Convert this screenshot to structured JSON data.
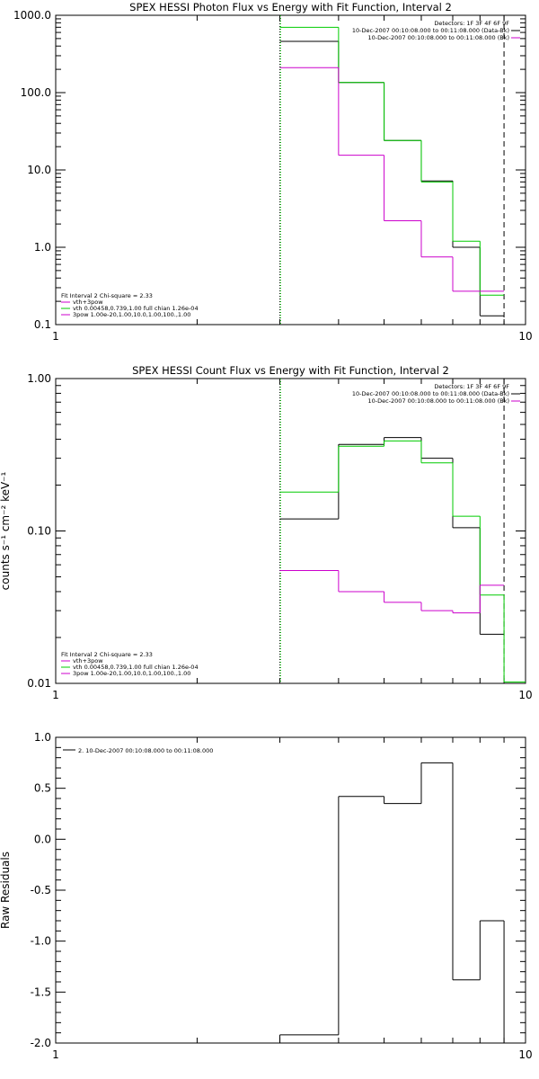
{
  "colors": {
    "black": "#000000",
    "green": "#00cc00",
    "magenta": "#cc00cc"
  },
  "chart_data": [
    {
      "type": "line",
      "title": "SPEX HESSI Photon Flux vs Energy with Fit Function, Interval 2",
      "xscale": "log",
      "yscale": "log",
      "xlim": [
        1,
        10
      ],
      "ylim": [
        0.1,
        1000
      ],
      "xticks": [
        "1",
        "10"
      ],
      "yticks": [
        "0.1",
        "1.0",
        "10.0",
        "100.0",
        "1000.0"
      ],
      "ytick_values": [
        0.1,
        1,
        10,
        100,
        1000
      ],
      "bin_edges": [
        3,
        4,
        5,
        6,
        7,
        8,
        9
      ],
      "series": [
        {
          "name": "data",
          "color": "black",
          "values": [
            460,
            135,
            24,
            7.2,
            1.0,
            0.13
          ]
        },
        {
          "name": "vth+3pow",
          "color": "green",
          "values": [
            700,
            135,
            24,
            7.0,
            1.2,
            0.24
          ]
        },
        {
          "name": "bk",
          "color": "magenta",
          "values": [
            210,
            15.5,
            2.2,
            0.75,
            0.27,
            0.27
          ]
        }
      ],
      "vlines": [
        {
          "x": 3,
          "style": "dotted",
          "color": "black"
        },
        {
          "x": 3,
          "style": "dotted",
          "color": "green"
        },
        {
          "x": 9,
          "style": "dashed",
          "color": "black"
        }
      ],
      "legend_top": [
        {
          "text": "Detectors: 1F 3F 4F 6F 9F",
          "color": "black"
        },
        {
          "text": "10-Dec-2007 00:10:08.000 to 00:11:08.000 (Data-Bk)",
          "color": "black"
        },
        {
          "text": "10-Dec-2007 00:10:08.000 to 00:11:08.000 (Bk)",
          "color": "magenta"
        }
      ],
      "legend_bottom": [
        {
          "text": "Fit Interval 2   Chi-square = 2.33",
          "color": "none"
        },
        {
          "text": "vth+3pow",
          "color": "magenta"
        },
        {
          "text": "vth 0.00458,0.739,1.00  full chian 1.26e-04",
          "color": "green"
        },
        {
          "text": "3pow 1.00e-20,1.00,10.0,1.00,100.,1.00",
          "color": "magenta"
        }
      ]
    },
    {
      "type": "line",
      "title": "SPEX HESSI Count Flux vs Energy with Fit Function, Interval 2",
      "ylabel": "counts s⁻¹ cm⁻² keV⁻¹",
      "xscale": "log",
      "yscale": "log",
      "xlim": [
        1,
        10
      ],
      "ylim": [
        0.01,
        1
      ],
      "xticks": [
        "1",
        "10"
      ],
      "yticks": [
        "0.01",
        "0.10",
        "1.00"
      ],
      "ytick_values": [
        0.01,
        0.1,
        1
      ],
      "bin_edges": [
        3,
        4,
        5,
        6,
        7,
        8,
        9,
        10
      ],
      "series": [
        {
          "name": "data",
          "color": "black",
          "values": [
            0.12,
            0.37,
            0.41,
            0.3,
            0.105,
            0.021,
            null
          ]
        },
        {
          "name": "vth+3pow",
          "color": "green",
          "values": [
            0.18,
            0.36,
            0.39,
            0.28,
            0.125,
            0.038,
            0.0102
          ]
        },
        {
          "name": "bk",
          "color": "magenta",
          "values": [
            0.055,
            0.04,
            0.034,
            0.03,
            0.029,
            0.044,
            null
          ]
        }
      ],
      "vlines": [
        {
          "x": 3,
          "style": "dotted",
          "color": "black"
        },
        {
          "x": 3,
          "style": "dotted",
          "color": "green"
        },
        {
          "x": 9,
          "style": "dashed",
          "color": "black"
        }
      ],
      "legend_top": [
        {
          "text": "Detectors: 1F 3F 4F 6F 9F",
          "color": "black"
        },
        {
          "text": "10-Dec-2007 00:10:08.000 to 00:11:08.000 (Data-Bk)",
          "color": "black"
        },
        {
          "text": "10-Dec-2007 00:10:08.000 to 00:11:08.000 (Bk)",
          "color": "magenta"
        }
      ],
      "legend_bottom": [
        {
          "text": "Fit Interval 2   Chi-square = 2.33",
          "color": "none"
        },
        {
          "text": "vth+3pow",
          "color": "magenta"
        },
        {
          "text": "vth 0.00458,0.739,1.00  full chian 1.26e-04",
          "color": "green"
        },
        {
          "text": "3pow 1.00e-20,1.00,10.0,1.00,100.,1.00",
          "color": "magenta"
        }
      ]
    },
    {
      "type": "line",
      "title": "",
      "ylabel": "Raw Residuals",
      "xscale": "log",
      "yscale": "linear",
      "xlim": [
        1,
        10
      ],
      "ylim": [
        -2.0,
        1.0
      ],
      "xticks": [
        "1",
        "10"
      ],
      "yticks": [
        "-2.0",
        "-1.5",
        "-1.0",
        "-0.5",
        "0.0",
        "0.5",
        "1.0"
      ],
      "ytick_values": [
        -2.0,
        -1.5,
        -1.0,
        -0.5,
        0.0,
        0.5,
        1.0
      ],
      "bin_edges": [
        3,
        4,
        5,
        6,
        7,
        8,
        9
      ],
      "series": [
        {
          "name": "residuals",
          "color": "black",
          "values": [
            -1.92,
            0.42,
            0.35,
            0.75,
            -1.38,
            -0.8
          ]
        }
      ],
      "vlines": [],
      "legend_top": [
        {
          "text": "2. 10-Dec-2007 00:10:08.000 to 00:11:08.000",
          "color": "black"
        }
      ],
      "legend_bottom": []
    }
  ]
}
